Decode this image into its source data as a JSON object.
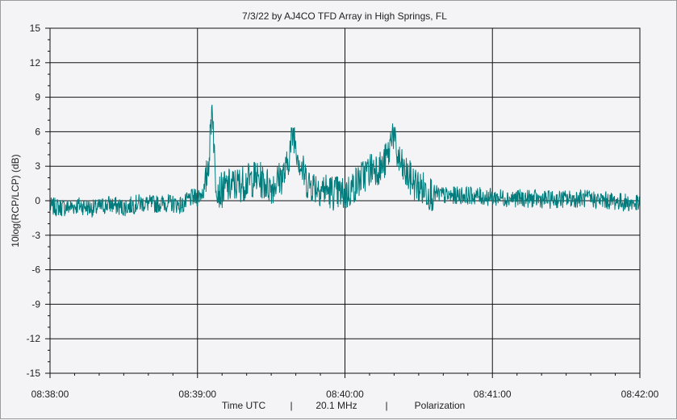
{
  "chart_data": {
    "type": "line",
    "title": "7/3/22  by  AJ4CO TFD Array  in  High Springs, FL",
    "ylabel": "10log(RCP/LCP) (dB)",
    "xlabel": "Time UTC",
    "footer": [
      "Time UTC",
      "|",
      "20.1 MHz",
      "|",
      "Polarization"
    ],
    "frequency": "20.1 MHz",
    "mode": "Polarization",
    "ylim": [
      -15,
      15
    ],
    "yticks": [
      15,
      12,
      9,
      6,
      3,
      0,
      -3,
      -6,
      -9,
      -12,
      -15
    ],
    "xlim_minutes": [
      0,
      4
    ],
    "xticks": [
      {
        "value": 0,
        "label": "08:38:00"
      },
      {
        "value": 1,
        "label": "08:39:00"
      },
      {
        "value": 2,
        "label": "08:40:00"
      },
      {
        "value": 3,
        "label": "08:41:00"
      },
      {
        "value": 4,
        "label": "08:42:00"
      }
    ],
    "grid": true,
    "line_color": "#007c7c",
    "series": [
      {
        "x_minutes": [
          0.0,
          0.1,
          0.2,
          0.3,
          0.4,
          0.5,
          0.6,
          0.7,
          0.8,
          0.9,
          0.95,
          1.0,
          1.05,
          1.08,
          1.1,
          1.12,
          1.15,
          1.2,
          1.3,
          1.4,
          1.5,
          1.6,
          1.65,
          1.7,
          1.75,
          1.8,
          1.9,
          2.0,
          2.1,
          2.15,
          2.2,
          2.25,
          2.3,
          2.32,
          2.35,
          2.4,
          2.45,
          2.5,
          2.6,
          2.7,
          2.8,
          3.0,
          3.2,
          3.4,
          3.6,
          3.8,
          4.0
        ],
        "y_db": [
          -0.5,
          -0.6,
          -0.4,
          -0.7,
          -0.3,
          -0.6,
          -0.2,
          -0.3,
          -0.2,
          -0.4,
          0.2,
          0.3,
          1.0,
          4.0,
          8.8,
          2.0,
          0.8,
          1.2,
          1.5,
          2.0,
          1.2,
          2.5,
          6.0,
          3.0,
          1.5,
          1.3,
          0.8,
          0.5,
          1.8,
          2.5,
          3.0,
          2.8,
          4.2,
          6.4,
          4.0,
          2.5,
          1.8,
          1.2,
          0.6,
          0.4,
          0.5,
          0.3,
          0.2,
          0.1,
          0.2,
          0.0,
          -0.3
        ]
      }
    ]
  }
}
